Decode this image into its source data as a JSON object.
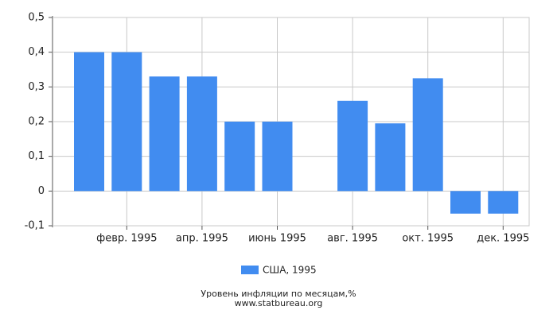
{
  "chart_data": {
    "type": "bar",
    "title": "Уровень инфляции по месяцам,%",
    "subtitle": "www.statbureau.org",
    "categories": [
      null,
      "февр. 1995",
      null,
      "апр. 1995",
      null,
      "июнь 1995",
      null,
      "авг. 1995",
      null,
      "окт. 1995",
      null,
      "дек. 1995"
    ],
    "series": [
      {
        "name": "США, 1995",
        "color": "#418cf0",
        "values": [
          0.4,
          0.4,
          0.33,
          0.33,
          0.2,
          0.2,
          0,
          0.26,
          0.195,
          0.325,
          -0.065,
          -0.065
        ]
      }
    ],
    "ylim": [
      -0.1,
      0.5
    ],
    "yticks": [
      {
        "value": -0.1,
        "label": "-0,1"
      },
      0,
      {
        "value": 0.1,
        "label": "0,1"
      },
      {
        "value": 0.2,
        "label": "0,2"
      },
      {
        "value": 0.3,
        "label": "0,3"
      },
      {
        "value": 0.4,
        "label": "0,4"
      },
      {
        "value": 0.5,
        "label": "0,5"
      }
    ],
    "grid": true
  }
}
